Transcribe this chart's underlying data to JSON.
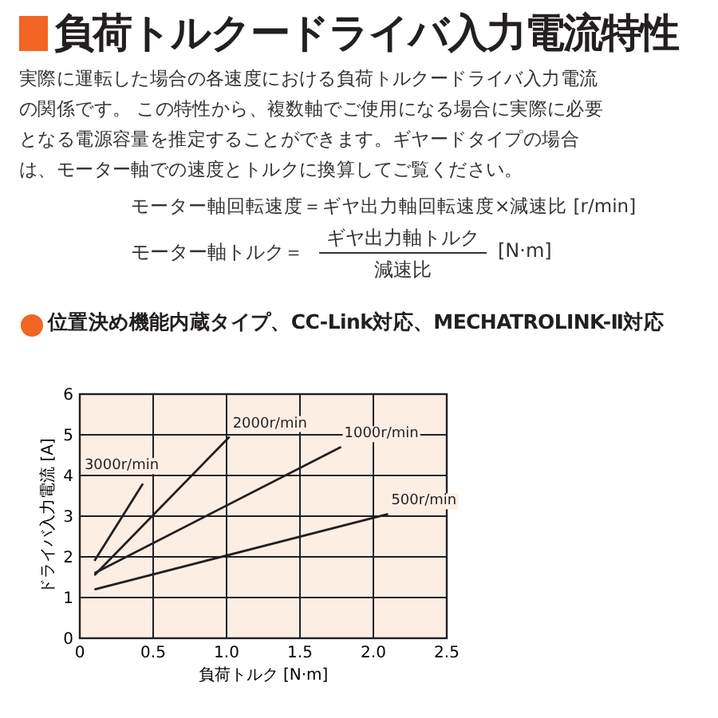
{
  "chart_data": {
    "type": "line",
    "title": "負荷トルクードライバ入力電流特性",
    "subtitle": "位置決め機能内蔵タイプ、CC-Link対応、MECHATROLINK-Ⅱ対応",
    "annotations": [
      "実際に運転した場合の各速度における負荷トルクードライバ入力電流の関係です。 この特性から、複数軸でご使用になる場合に実際に必要となる電源容量を推定することができます。ギヤードタイプの場合は、モーター軸での速度とトルクに換算してご覧ください。",
      "モーター軸回転速度＝ギヤ出力軸回転速度×減速比 [r/min]",
      "モーター軸トルク＝",
      "ギヤ出力軸トルク",
      "減速比",
      "[N·m]"
    ],
    "xlabel": "負荷トルク [N·m]",
    "ylabel": "ドライバ入力電流 [A]",
    "xlim": [
      0,
      2.5
    ],
    "ylim": [
      0,
      6
    ],
    "xticks": [
      0,
      0.5,
      {
        "value": 1,
        "label": "1.0"
      },
      1.5,
      {
        "value": 2,
        "label": "2.0"
      },
      2.5
    ],
    "yticks": [
      0,
      1,
      2,
      3,
      4,
      5,
      6
    ],
    "grid": true,
    "marker": "none",
    "line_style": "solid",
    "series": [
      {
        "name": "3000r/min",
        "color": "#231f20",
        "x": [
          0.1,
          0.43
        ],
        "values": [
          1.9,
          3.8
        ]
      },
      {
        "name": "2000r/min",
        "color": "#231f20",
        "x": [
          0.1,
          1.02
        ],
        "values": [
          1.55,
          4.95
        ]
      },
      {
        "name": "1000r/min",
        "color": "#231f20",
        "x": [
          0.1,
          1.78
        ],
        "values": [
          1.6,
          4.7
        ]
      },
      {
        "name": "500r/min",
        "color": "#231f20",
        "x": [
          0.1,
          2.1
        ],
        "values": [
          1.2,
          3.05
        ]
      }
    ]
  }
}
